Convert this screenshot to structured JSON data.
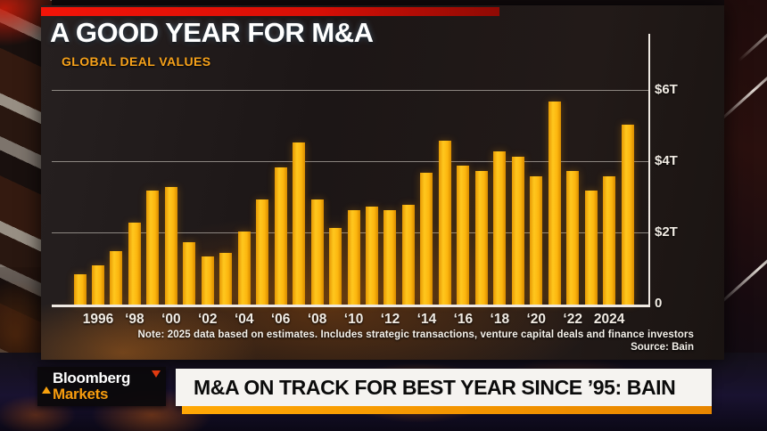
{
  "header": {
    "title": "A GOOD YEAR FOR M&A",
    "subtitle": "GLOBAL DEAL VALUES"
  },
  "chart_data": {
    "type": "bar",
    "title": "GLOBAL DEAL VALUES",
    "unit": "USD trillions",
    "categories": [
      "1995",
      "1996",
      "1997",
      "1998",
      "1999",
      "2000",
      "2001",
      "2002",
      "2003",
      "2004",
      "2005",
      "2006",
      "2007",
      "2008",
      "2009",
      "2010",
      "2011",
      "2012",
      "2013",
      "2014",
      "2015",
      "2016",
      "2017",
      "2018",
      "2019",
      "2020",
      "2021",
      "2022",
      "2023",
      "2024",
      "2025"
    ],
    "values": [
      0.85,
      1.1,
      1.5,
      2.3,
      3.2,
      3.3,
      1.75,
      1.35,
      1.45,
      2.05,
      2.95,
      3.85,
      4.55,
      2.95,
      2.15,
      2.65,
      2.75,
      2.65,
      2.8,
      3.7,
      4.6,
      3.9,
      3.75,
      4.3,
      4.15,
      3.6,
      5.7,
      3.75,
      3.2,
      3.6,
      5.05
    ],
    "x_tick_labels": [
      "1996",
      "‘98",
      "‘00",
      "‘02",
      "‘04",
      "‘06",
      "‘08",
      "‘10",
      "‘12",
      "‘14",
      "‘16",
      "‘18",
      "‘20",
      "‘22",
      "2024"
    ],
    "y_ticks": [
      {
        "label": "$6T",
        "value": 6
      },
      {
        "label": "$4T",
        "value": 4
      },
      {
        "label": "$2T",
        "value": 2
      },
      {
        "label": "0",
        "value": 0
      }
    ],
    "ylim": [
      0,
      7
    ],
    "grid": "horizontal",
    "legend": "none",
    "bar_color": "#FDB913",
    "note": "Note: 2025 data based on estimates. Includes strategic transactions, venture capital deals and finance investors",
    "source": "Source: Bain"
  },
  "chyron": {
    "logo_line1": "Bloomberg",
    "logo_line2": "Markets",
    "headline": "M&A ON TRACK FOR BEST YEAR SINCE ’95: BAIN"
  },
  "colors": {
    "bar": "#FDB913",
    "accent_red": "#E8100C",
    "accent_orange": "#F79C0E",
    "axis": "#EFE9E2",
    "banner_bg": "#F5F3F0",
    "headline_text": "#0B0B0B"
  }
}
